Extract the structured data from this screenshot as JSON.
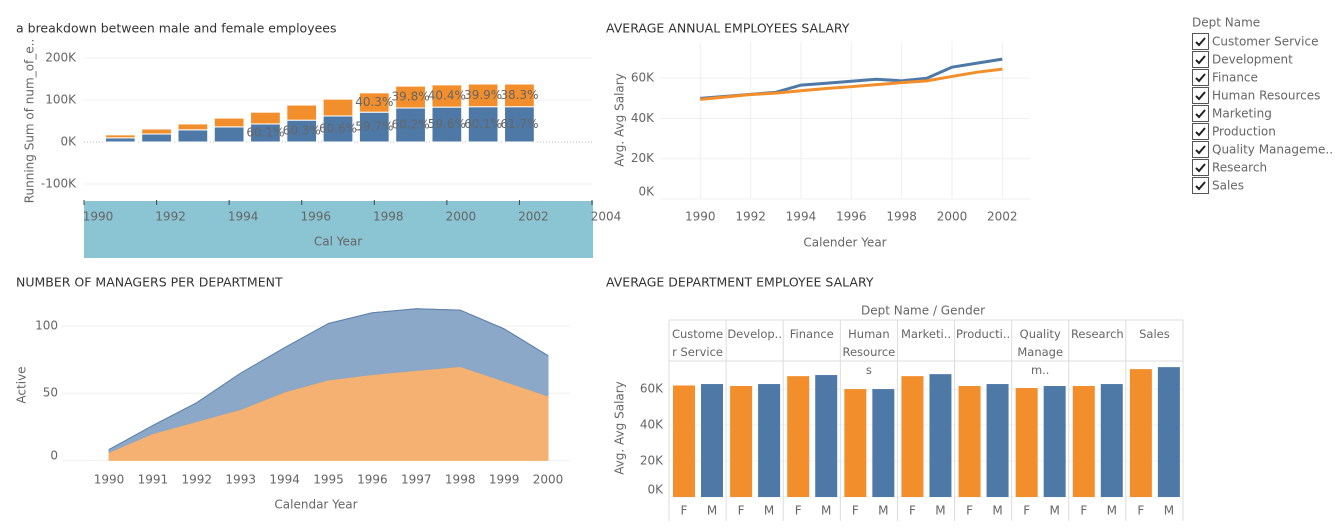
{
  "chart_data": [
    {
      "type": "stacked_bar",
      "title": "a breakdown between male and female employees",
      "y_title": "Running Sum of num_of_e..",
      "x_title": "Cal Year",
      "x": [
        1991,
        1992,
        1993,
        1994,
        1995,
        1996,
        1997,
        1998,
        1999,
        2000,
        2001,
        2002
      ],
      "xlim": [
        1990,
        2004
      ],
      "xticks": [
        1990,
        1992,
        1994,
        1996,
        1998,
        2000,
        2002,
        2004
      ],
      "ylim": [
        -138000,
        238000
      ],
      "yticks": [
        {
          "value": -100000,
          "label": "-100K"
        },
        {
          "value": 0,
          "label": "0K"
        },
        {
          "value": 100000,
          "label": "100K"
        },
        {
          "value": 200000,
          "label": "200K"
        }
      ],
      "series": [
        {
          "color": "#4e79a7",
          "values": [
            10000,
            19000,
            29000,
            36000,
            43000,
            52000,
            62000,
            71000,
            81000,
            83000,
            84000,
            84000
          ],
          "labels": [
            null,
            null,
            null,
            null,
            "60.1%",
            "60.3%",
            "60.6%",
            "59.7%",
            "60.2%",
            "59.6%",
            "60.1%",
            "61.7%"
          ]
        },
        {
          "color": "#f28e2b",
          "values": [
            7000,
            12000,
            14000,
            21000,
            28000,
            36000,
            40000,
            46000,
            52000,
            53000,
            54000,
            54000
          ],
          "labels": [
            null,
            null,
            null,
            null,
            null,
            null,
            null,
            "40.3%",
            "39.8%",
            "40.4%",
            "39.9%",
            "38.3%"
          ]
        }
      ]
    },
    {
      "type": "line",
      "title": "AVERAGE ANNUAL EMPLOYEES SALARY",
      "y_title": "Avg. Avg Salary",
      "x_title": "Calender Year",
      "x": [
        1990,
        1991,
        1992,
        1993,
        1994,
        1995,
        1996,
        1997,
        1998,
        1999,
        2000,
        2001,
        2002
      ],
      "xlim": [
        1988.4,
        2003.1
      ],
      "xticks": [
        1990,
        1992,
        1994,
        1996,
        1998,
        2000,
        2002
      ],
      "ylim": [
        0,
        78000
      ],
      "yticks": [
        {
          "value": 0,
          "label": "0K"
        },
        {
          "value": 20000,
          "label": "20K"
        },
        {
          "value": 40000,
          "label": "40K"
        },
        {
          "value": 60000,
          "label": "60K"
        }
      ],
      "series": [
        {
          "color": "#4e79a7",
          "values": [
            50000,
            51000,
            52000,
            53000,
            56600,
            57500,
            58500,
            59500,
            58700,
            60000,
            65500,
            67500,
            69500
          ]
        },
        {
          "color": "#f28e2b",
          "values": [
            49500,
            50700,
            51900,
            52600,
            53800,
            54900,
            55800,
            56800,
            57800,
            58700,
            60900,
            63000,
            64500
          ]
        }
      ]
    },
    {
      "type": "stacked_area",
      "title": "NUMBER OF MANAGERS PER DEPARTMENT",
      "y_title": "Active",
      "x_title": "Calendar Year",
      "categories": [
        "1990",
        "1991",
        "1992",
        "1993",
        "1994",
        "1995",
        "1996",
        "1997",
        "1998",
        "1999",
        "2000"
      ],
      "ylim": [
        -2,
        121
      ],
      "yticks": [
        0,
        50,
        100
      ],
      "series": [
        {
          "color": "#f5b172",
          "values": [
            6,
            20,
            29,
            38,
            51,
            60,
            64,
            67,
            70,
            59,
            48
          ]
        },
        {
          "color": "#8ba8c9",
          "values": [
            2,
            6,
            14,
            27,
            33,
            42,
            46,
            46,
            42,
            39,
            30
          ]
        }
      ]
    },
    {
      "type": "grouped_bar",
      "title": "AVERAGE DEPARTMENT EMPLOYEE SALARY",
      "header": "Dept Name / Gender",
      "y_title": "Avg. Avg Salary",
      "categories": [
        "Customer Service",
        "Develop..",
        "Finance",
        "Human Resources",
        "Marketi..",
        "Producti..",
        "Quality Managem..",
        "Research",
        "Sales"
      ],
      "ylim": [
        0,
        74500
      ],
      "yticks": [
        {
          "value": 0,
          "label": "0K"
        },
        {
          "value": 20000,
          "label": "20K"
        },
        {
          "value": 40000,
          "label": "40K"
        },
        {
          "value": 60000,
          "label": "60K"
        }
      ],
      "series": [
        {
          "name": "F",
          "color": "#f28e2b",
          "values": [
            62000,
            61700,
            67200,
            60000,
            67200,
            61700,
            60600,
            61700,
            71100
          ]
        },
        {
          "name": "M",
          "color": "#4e79a7",
          "values": [
            62800,
            62800,
            67800,
            60000,
            68300,
            62800,
            61700,
            62800,
            72200
          ]
        }
      ]
    }
  ],
  "filter": {
    "title": "Dept Name",
    "items": [
      "Customer Service",
      "Development",
      "Finance",
      "Human Resources",
      "Marketing",
      "Production",
      "Quality Manageme..",
      "Research",
      "Sales"
    ]
  }
}
